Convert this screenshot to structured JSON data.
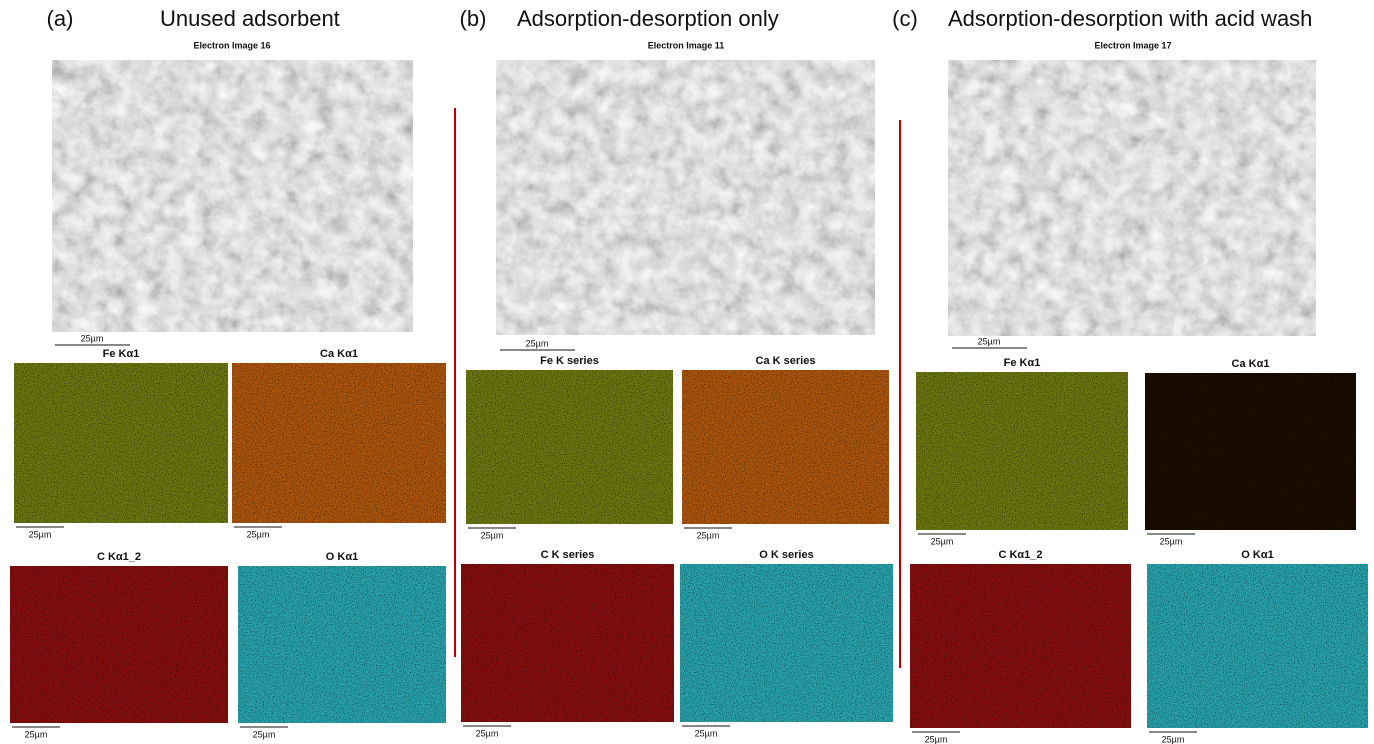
{
  "panels": [
    {
      "label": "(a)",
      "title": "Unused adsorbent",
      "electron_image": "Electron Image 16",
      "scale": "25µm",
      "maps": [
        {
          "label": "Fe Kα1",
          "scale": "25µm"
        },
        {
          "label": "Ca Kα1",
          "scale": "25µm"
        },
        {
          "label": "C Kα1_2",
          "scale": "25µm"
        },
        {
          "label": "O Kα1",
          "scale": "25µm"
        }
      ]
    },
    {
      "label": "(b)",
      "title": "Adsorption-desorption only",
      "electron_image": "Electron Image 11",
      "scale": "25µm",
      "maps": [
        {
          "label": "Fe K series",
          "scale": "25µm"
        },
        {
          "label": "Ca K series",
          "scale": "25µm"
        },
        {
          "label": "C K series",
          "scale": "25µm"
        },
        {
          "label": "O K series",
          "scale": "25µm"
        }
      ]
    },
    {
      "label": "(c)",
      "title": "Adsorption-desorption with acid wash",
      "electron_image": "Electron Image 17",
      "scale": "25µm",
      "maps": [
        {
          "label": "Fe Kα1",
          "scale": "25µm"
        },
        {
          "label": "Ca Kα1",
          "scale": "25µm"
        },
        {
          "label": "C Kα1_2",
          "scale": "25µm"
        },
        {
          "label": "O Kα1",
          "scale": "25µm"
        }
      ]
    }
  ]
}
